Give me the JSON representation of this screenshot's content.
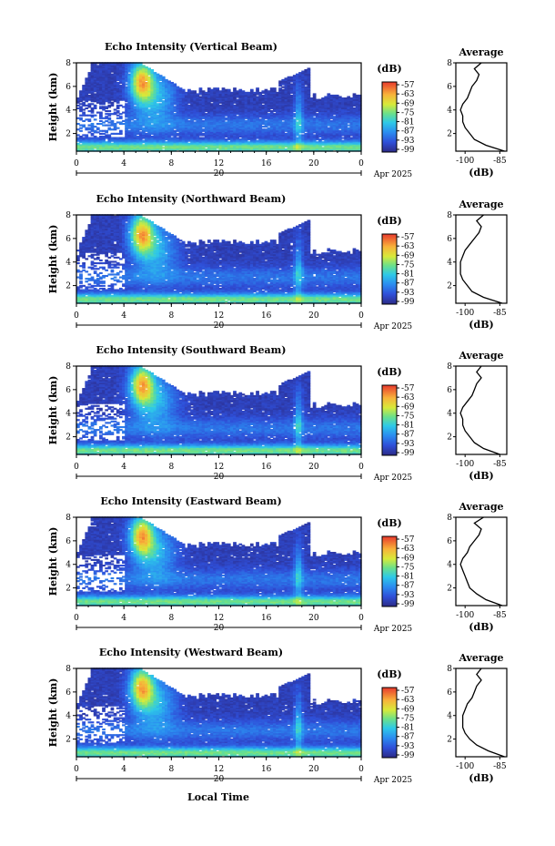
{
  "figure": {
    "xlabel": "Local Time",
    "date_label": "Apr 2025",
    "colorbar_unit": "(dB)",
    "avg_title": "Average",
    "avg_xlabel": "(dB)"
  },
  "chart_data": [
    {
      "type": "heatmap",
      "title": "Echo Intensity (Vertical Beam)",
      "ylabel": "Height (km)",
      "x_ticks": [
        "0",
        "4",
        "8",
        "12",
        "16",
        "20",
        "0"
      ],
      "day_label": "20",
      "xlim": [
        0,
        24
      ],
      "y_ticks": [
        "2",
        "4",
        "6",
        "8"
      ],
      "ylim": [
        0.5,
        8
      ],
      "colorbar_ticks": [
        "-57",
        "-63",
        "-69",
        "-75",
        "-81",
        "-87",
        "-93",
        "-99"
      ],
      "colorbar_range": [
        -99,
        -57
      ],
      "features": {
        "upper_left_cutoff_km": 8.0,
        "upper_right_cutoff_km": 4.9,
        "sparse_low_left": true
      },
      "average_profile": {
        "xticks": [
          "-100",
          "-85"
        ],
        "xlim": [
          -104,
          -82
        ],
        "ylim": [
          0.5,
          8
        ],
        "yticks": [
          "2",
          "4",
          "6",
          "8"
        ],
        "height": [
          0.5,
          1,
          1.5,
          2,
          2.5,
          3,
          3.5,
          4,
          4.5,
          5,
          5.5,
          6,
          6.5,
          7,
          7.5,
          8
        ],
        "db": [
          -83,
          -91,
          -96,
          -98,
          -100,
          -101,
          -101,
          -102,
          -101,
          -99,
          -98,
          -97,
          -95,
          -94,
          -96,
          -93
        ]
      }
    },
    {
      "type": "heatmap",
      "title": "Echo Intensity (Northward Beam)",
      "ylabel": "Height (km)",
      "x_ticks": [
        "0",
        "4",
        "8",
        "12",
        "16",
        "20",
        "0"
      ],
      "day_label": "20",
      "xlim": [
        0,
        24
      ],
      "y_ticks": [
        "2",
        "4",
        "6",
        "8"
      ],
      "ylim": [
        0.5,
        8
      ],
      "colorbar_ticks": [
        "-57",
        "-63",
        "-69",
        "-75",
        "-81",
        "-87",
        "-93",
        "-99"
      ],
      "colorbar_range": [
        -99,
        -57
      ],
      "features": {
        "upper_left_cutoff_km": 8.0,
        "upper_right_cutoff_km": 4.6,
        "sparse_low_left": true
      },
      "average_profile": {
        "xticks": [
          "-100",
          "-85"
        ],
        "xlim": [
          -104,
          -82
        ],
        "ylim": [
          0.5,
          8
        ],
        "yticks": [
          "2",
          "4",
          "6",
          "8"
        ],
        "height": [
          0.5,
          1,
          1.5,
          2,
          2.5,
          3,
          3.5,
          4,
          4.5,
          5,
          5.5,
          6,
          6.5,
          7,
          7.5,
          8
        ],
        "db": [
          -84,
          -92,
          -97,
          -99,
          -101,
          -102,
          -102,
          -102,
          -101,
          -100,
          -98,
          -96,
          -94,
          -93,
          -95,
          -92
        ]
      }
    },
    {
      "type": "heatmap",
      "title": "Echo Intensity (Southward Beam)",
      "ylabel": "Height (km)",
      "x_ticks": [
        "0",
        "4",
        "8",
        "12",
        "16",
        "20",
        "0"
      ],
      "day_label": "20",
      "xlim": [
        0,
        24
      ],
      "y_ticks": [
        "2",
        "4",
        "6",
        "8"
      ],
      "ylim": [
        0.5,
        8
      ],
      "colorbar_ticks": [
        "-57",
        "-63",
        "-69",
        "-75",
        "-81",
        "-87",
        "-93",
        "-99"
      ],
      "colorbar_range": [
        -99,
        -57
      ],
      "features": {
        "upper_left_cutoff_km": 8.0,
        "upper_right_cutoff_km": 4.4,
        "sparse_low_left": true
      },
      "average_profile": {
        "xticks": [
          "-100",
          "-85"
        ],
        "xlim": [
          -104,
          -82
        ],
        "ylim": [
          0.5,
          8
        ],
        "yticks": [
          "2",
          "4",
          "6",
          "8"
        ],
        "height": [
          0.5,
          1,
          1.5,
          2,
          2.5,
          3,
          3.5,
          4,
          4.5,
          5,
          5.5,
          6,
          6.5,
          7,
          7.5,
          8
        ],
        "db": [
          -85,
          -92,
          -96,
          -98,
          -100,
          -101,
          -101,
          -102,
          -101,
          -99,
          -97,
          -96,
          -95,
          -93,
          -95,
          -93
        ]
      }
    },
    {
      "type": "heatmap",
      "title": "Echo Intensity (Eastward Beam)",
      "ylabel": "Height (km)",
      "x_ticks": [
        "0",
        "4",
        "8",
        "12",
        "16",
        "20",
        "0"
      ],
      "day_label": "20",
      "xlim": [
        0,
        24
      ],
      "y_ticks": [
        "2",
        "4",
        "6",
        "8"
      ],
      "ylim": [
        0.5,
        8
      ],
      "colorbar_ticks": [
        "-57",
        "-63",
        "-69",
        "-75",
        "-81",
        "-87",
        "-93",
        "-99"
      ],
      "colorbar_range": [
        -99,
        -57
      ],
      "features": {
        "upper_left_cutoff_km": 8.0,
        "upper_right_cutoff_km": 4.6,
        "sparse_low_left": true
      },
      "average_profile": {
        "xticks": [
          "-100",
          "-85"
        ],
        "xlim": [
          -104,
          -82
        ],
        "ylim": [
          0.5,
          8
        ],
        "yticks": [
          "2",
          "4",
          "6",
          "8"
        ],
        "height": [
          0.5,
          1,
          1.5,
          2,
          2.5,
          3,
          3.5,
          4,
          4.5,
          5,
          5.5,
          6,
          6.5,
          7,
          7.5,
          8
        ],
        "db": [
          -84,
          -91,
          -95,
          -98,
          -99,
          -100,
          -101,
          -102,
          -101,
          -99,
          -98,
          -96,
          -94,
          -93,
          -96,
          -92
        ]
      }
    },
    {
      "type": "heatmap",
      "title": "Echo Intensity (Westward Beam)",
      "ylabel": "Height (km)",
      "x_ticks": [
        "0",
        "4",
        "8",
        "12",
        "16",
        "20",
        "0"
      ],
      "day_label": "20",
      "xlim": [
        0,
        24
      ],
      "y_ticks": [
        "2",
        "4",
        "6",
        "8"
      ],
      "ylim": [
        0.5,
        8
      ],
      "colorbar_ticks": [
        "-57",
        "-63",
        "-69",
        "-75",
        "-81",
        "-87",
        "-93",
        "-99"
      ],
      "colorbar_range": [
        -99,
        -57
      ],
      "features": {
        "upper_left_cutoff_km": 8.0,
        "upper_right_cutoff_km": 4.9,
        "sparse_low_left": true
      },
      "average_profile": {
        "xticks": [
          "-100",
          "-85"
        ],
        "xlim": [
          -104,
          -82
        ],
        "ylim": [
          0.5,
          8
        ],
        "yticks": [
          "2",
          "4",
          "6",
          "8"
        ],
        "height": [
          0.5,
          1,
          1.5,
          2,
          2.5,
          3,
          3.5,
          4,
          4.5,
          5,
          5.5,
          6,
          6.5,
          7,
          7.5,
          8
        ],
        "db": [
          -83,
          -90,
          -95,
          -98,
          -100,
          -101,
          -101,
          -101,
          -100,
          -99,
          -97,
          -96,
          -95,
          -93,
          -95,
          -93
        ]
      }
    }
  ]
}
